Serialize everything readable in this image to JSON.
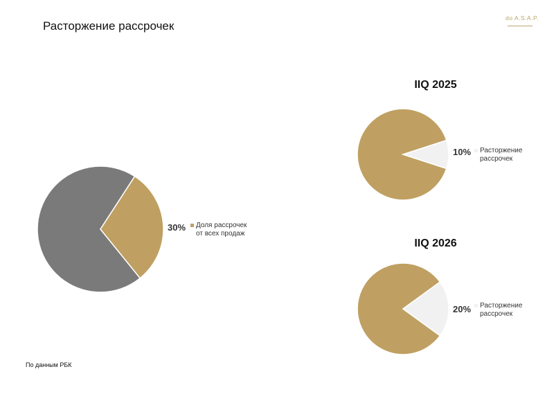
{
  "page": {
    "title": "Расторжение рассрочек",
    "brand": "do A.S.A.P.",
    "source": "По данным РБК"
  },
  "colors": {
    "gold": "#bfa062",
    "gray": "#7a7a7a",
    "light": "#f1f1f1"
  },
  "chart_data": [
    {
      "type": "pie",
      "title": "",
      "slices": [
        {
          "label": "",
          "value": 70,
          "color": "#7a7a7a"
        },
        {
          "label": "Доля рассрочек от всех продаж",
          "value": 30,
          "color": "#bfa062"
        }
      ],
      "highlight": {
        "value_label": "30%",
        "legend_line1": "Доля рассрочек",
        "legend_line2": "от всех продаж"
      }
    },
    {
      "type": "pie",
      "title": "IIQ 2025",
      "slices": [
        {
          "label": "",
          "value": 90,
          "color": "#bfa062"
        },
        {
          "label": "Расторжение рассрочек",
          "value": 10,
          "color": "#f1f1f1"
        }
      ],
      "highlight": {
        "value_label": "10%",
        "legend_line1": "Расторжение",
        "legend_line2": "рассрочек"
      }
    },
    {
      "type": "pie",
      "title": "IIQ 2026",
      "slices": [
        {
          "label": "",
          "value": 80,
          "color": "#bfa062"
        },
        {
          "label": "Расторжение рассрочек",
          "value": 20,
          "color": "#f1f1f1"
        }
      ],
      "highlight": {
        "value_label": "20%",
        "legend_line1": "Расторжение",
        "legend_line2": "рассрочек"
      }
    }
  ]
}
